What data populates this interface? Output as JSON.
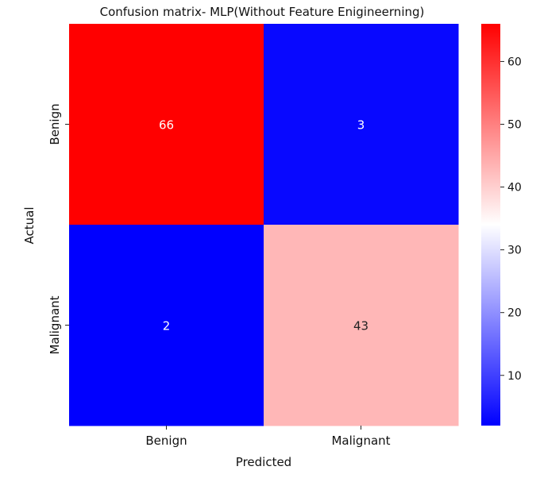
{
  "chart_data": {
    "type": "heatmap",
    "title": "Confusion matrix- MLP(Without Feature Enigineerning)",
    "xlabel": "Predicted",
    "ylabel": "Actual",
    "x_categories": [
      "Benign",
      "Malignant"
    ],
    "y_categories": [
      "Benign",
      "Malignant"
    ],
    "values": [
      [
        66,
        3
      ],
      [
        2,
        43
      ]
    ],
    "colormap": "bwr",
    "color_range": [
      2,
      66
    ],
    "colorbar_ticks": [
      10,
      20,
      30,
      40,
      50,
      60
    ],
    "colors": {
      "low": "#0000ff",
      "mid": "#ffffff",
      "high": "#ff0000"
    }
  }
}
